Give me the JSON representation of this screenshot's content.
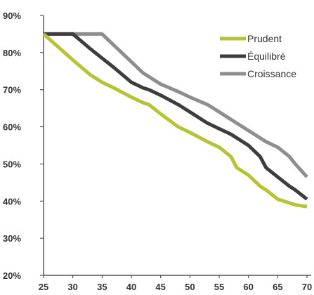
{
  "chart_data": {
    "type": "line",
    "title": "",
    "xlabel": "",
    "ylabel": "",
    "x": [
      25,
      30,
      33,
      35,
      37,
      40,
      42,
      43,
      45,
      48,
      50,
      53,
      55,
      57,
      58,
      60,
      62,
      63,
      65,
      67,
      68,
      70
    ],
    "xlim": [
      25,
      70
    ],
    "ylim": [
      20,
      90
    ],
    "x_ticks": [
      "25",
      "30",
      "35",
      "40",
      "45",
      "50",
      "55",
      "60",
      "65",
      "70"
    ],
    "y_ticks": [
      "20%",
      "30%",
      "40%",
      "50%",
      "60%",
      "70%",
      "80%",
      "90%"
    ],
    "grid": false,
    "legend_position": "top-right",
    "series": [
      {
        "name": "Prudent",
        "color": "#b5c334",
        "values": [
          85,
          78,
          74,
          72,
          70.5,
          68,
          66.5,
          66,
          63.5,
          60,
          58.5,
          56,
          54.5,
          52,
          49,
          47,
          44,
          43,
          40.5,
          39.5,
          39,
          38.5
        ]
      },
      {
        "name": "Équilibré",
        "color": "#3d3d3d",
        "values": [
          85,
          85,
          81,
          78.5,
          76,
          72,
          70.5,
          70,
          68.5,
          66,
          64,
          61,
          59.5,
          58,
          57,
          55,
          52,
          49,
          46.5,
          44,
          43,
          40.5
        ]
      },
      {
        "name": "Croissance",
        "color": "#8e8e8e",
        "values": [
          85,
          85,
          85,
          85,
          82,
          77.5,
          74.5,
          73.5,
          71.5,
          69.5,
          68,
          66,
          64,
          62,
          61,
          59,
          57,
          56,
          54.5,
          52,
          50,
          46.5
        ]
      }
    ]
  }
}
